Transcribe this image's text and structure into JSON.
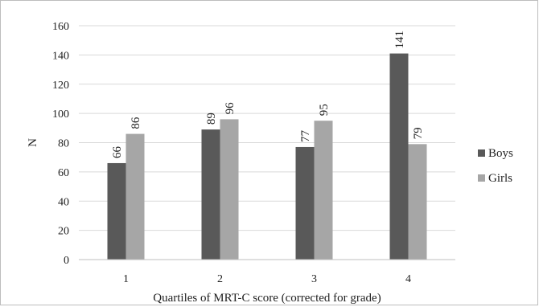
{
  "chart_data": {
    "type": "bar",
    "categories": [
      "1",
      "2",
      "3",
      "4"
    ],
    "series": [
      {
        "name": "Boys",
        "values": [
          66,
          89,
          77,
          141
        ],
        "color": "#595959"
      },
      {
        "name": "Girls",
        "values": [
          86,
          96,
          95,
          79
        ],
        "color": "#a6a6a6"
      }
    ],
    "xlabel": "Quartiles of MRT-C score (corrected for grade)",
    "ylabel": "N",
    "ylim": [
      0,
      160
    ],
    "yticks": [
      0,
      20,
      40,
      60,
      80,
      100,
      120,
      140,
      160
    ],
    "grid": true,
    "legend": "right",
    "data_labels": true
  }
}
